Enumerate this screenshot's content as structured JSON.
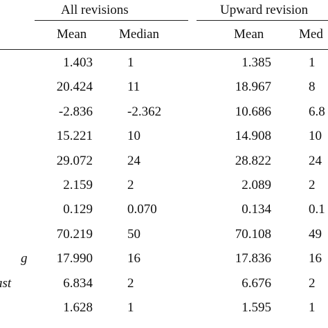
{
  "groups": {
    "all_revisions": "All revisions",
    "upward_revisions": "Upward revision"
  },
  "columns": {
    "all_mean": "Mean",
    "all_median": "Median",
    "up_mean": "Mean",
    "up_median": "Med"
  },
  "row_labels": [
    "",
    "",
    "",
    "",
    "",
    "",
    "",
    "",
    "g",
    "ast",
    ""
  ],
  "rows": [
    {
      "all_mean": "1.403",
      "all_median": "1",
      "up_mean": "1.385",
      "up_median": "1"
    },
    {
      "all_mean": "20.424",
      "all_median": "11",
      "up_mean": "18.967",
      "up_median": "8"
    },
    {
      "all_mean": "-2.836",
      "all_median": "-2.362",
      "up_mean": "10.686",
      "up_median": "6.8"
    },
    {
      "all_mean": "15.221",
      "all_median": "10",
      "up_mean": "14.908",
      "up_median": "10"
    },
    {
      "all_mean": "29.072",
      "all_median": "24",
      "up_mean": "28.822",
      "up_median": "24"
    },
    {
      "all_mean": "2.159",
      "all_median": "2",
      "up_mean": "2.089",
      "up_median": "2"
    },
    {
      "all_mean": "0.129",
      "all_median": "0.070",
      "up_mean": "0.134",
      "up_median": "0.1"
    },
    {
      "all_mean": "70.219",
      "all_median": "50",
      "up_mean": "70.108",
      "up_median": "49"
    },
    {
      "all_mean": "17.990",
      "all_median": "16",
      "up_mean": "17.836",
      "up_median": "16"
    },
    {
      "all_mean": "6.834",
      "all_median": "2",
      "up_mean": "6.676",
      "up_median": "2"
    },
    {
      "all_mean": "1.628",
      "all_median": "1",
      "up_mean": "1.595",
      "up_median": "1"
    }
  ]
}
